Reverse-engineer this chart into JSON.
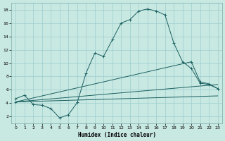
{
  "xlabel": "Humidex (Indice chaleur)",
  "bg_color": "#c8e8e2",
  "grid_color": "#9ecece",
  "line_color": "#1a6060",
  "xlim": [
    -0.5,
    23.5
  ],
  "ylim": [
    1.0,
    19.0
  ],
  "xticks": [
    0,
    1,
    2,
    3,
    4,
    5,
    6,
    7,
    8,
    9,
    10,
    11,
    12,
    13,
    14,
    15,
    16,
    17,
    18,
    19,
    20,
    21,
    22,
    23
  ],
  "yticks": [
    2,
    4,
    6,
    8,
    10,
    12,
    14,
    16,
    18
  ],
  "main_x": [
    0,
    1,
    2,
    3,
    4,
    5,
    6,
    7,
    8,
    9,
    10,
    11,
    12,
    13,
    14,
    15,
    16,
    17,
    18,
    19,
    20,
    21,
    22,
    23
  ],
  "main_y": [
    4.7,
    5.2,
    3.8,
    3.7,
    3.2,
    1.8,
    2.3,
    4.1,
    8.5,
    11.5,
    11.0,
    13.5,
    16.0,
    16.5,
    17.8,
    18.1,
    17.8,
    17.2,
    13.0,
    10.2,
    9.2,
    7.0,
    6.8,
    6.2
  ],
  "line2_x": [
    0,
    23
  ],
  "line2_y": [
    4.2,
    5.1
  ],
  "line3_x": [
    0,
    23
  ],
  "line3_y": [
    4.2,
    6.8
  ],
  "line4_x": [
    0,
    20,
    21,
    22,
    23
  ],
  "line4_y": [
    4.2,
    10.2,
    7.2,
    6.9,
    6.2
  ],
  "xlabel_fontsize": 5.5,
  "tick_fontsize": 4.5,
  "linewidth": 0.7,
  "marker_size": 2.5
}
